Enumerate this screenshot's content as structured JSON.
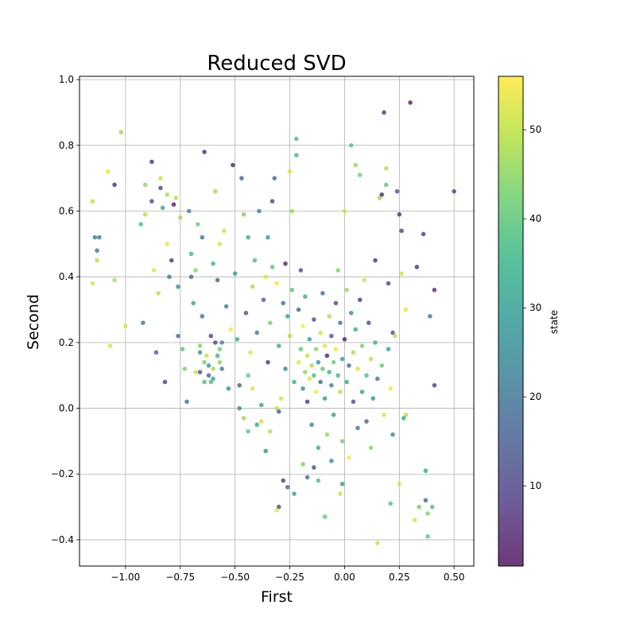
{
  "chart_data": {
    "type": "scatter",
    "title": "Reduced SVD",
    "xlabel": "First",
    "ylabel": "Second",
    "xlim": [
      -1.21,
      0.59
    ],
    "ylim": [
      -0.48,
      1.01
    ],
    "x_ticks": [
      -1.0,
      -0.75,
      -0.5,
      -0.25,
      0.0,
      0.25,
      0.5
    ],
    "x_tick_labels": [
      "−1.00",
      "−0.75",
      "−0.50",
      "−0.25",
      "0.00",
      "0.25",
      "0.50"
    ],
    "y_ticks": [
      -0.4,
      -0.2,
      0.0,
      0.2,
      0.4,
      0.6,
      0.8,
      1.0
    ],
    "y_tick_labels": [
      "−0.4",
      "−0.2",
      "0.0",
      "0.2",
      "0.4",
      "0.6",
      "0.8",
      "1.0"
    ],
    "grid": true,
    "colormap": "viridis",
    "colorbar": {
      "label": "state",
      "range": [
        1,
        56
      ],
      "ticks": [
        10,
        20,
        30,
        40,
        50
      ],
      "tick_labels": [
        "10",
        "20",
        "30",
        "40",
        "50"
      ]
    },
    "point_alpha": 0.75,
    "points": [
      [
        -1.15,
        0.63,
        50
      ],
      [
        -1.15,
        0.38,
        52
      ],
      [
        -1.14,
        0.52,
        22
      ],
      [
        -1.13,
        0.48,
        20
      ],
      [
        -1.13,
        0.45,
        49
      ],
      [
        -1.12,
        0.52,
        21
      ],
      [
        -1.08,
        0.72,
        54
      ],
      [
        -1.07,
        0.19,
        52
      ],
      [
        -1.05,
        0.68,
        5
      ],
      [
        -1.05,
        0.39,
        48
      ],
      [
        -1.02,
        0.84,
        47
      ],
      [
        -1.0,
        0.25,
        53
      ],
      [
        -0.93,
        0.56,
        38
      ],
      [
        -0.92,
        0.26,
        18
      ],
      [
        -0.91,
        0.68,
        45
      ],
      [
        -0.91,
        0.59,
        49
      ],
      [
        -0.88,
        0.75,
        6
      ],
      [
        -0.88,
        0.63,
        10
      ],
      [
        -0.87,
        0.42,
        53
      ],
      [
        -0.86,
        0.17,
        15
      ],
      [
        -0.85,
        0.35,
        50
      ],
      [
        -0.84,
        0.67,
        9
      ],
      [
        -0.84,
        0.7,
        51
      ],
      [
        -0.83,
        0.61,
        30
      ],
      [
        -0.82,
        0.08,
        7
      ],
      [
        -0.81,
        0.65,
        48
      ],
      [
        -0.81,
        0.5,
        54
      ],
      [
        -0.8,
        0.4,
        22
      ],
      [
        -0.79,
        0.45,
        6
      ],
      [
        -0.78,
        0.62,
        3
      ],
      [
        -0.77,
        0.64,
        49
      ],
      [
        -0.76,
        0.37,
        26
      ],
      [
        -0.76,
        0.22,
        18
      ],
      [
        -0.75,
        0.58,
        48
      ],
      [
        -0.74,
        0.18,
        40
      ],
      [
        -0.73,
        0.12,
        44
      ],
      [
        -0.72,
        0.02,
        20
      ],
      [
        -0.71,
        0.6,
        24
      ],
      [
        -0.7,
        0.47,
        36
      ],
      [
        -0.7,
        0.4,
        17
      ],
      [
        -0.69,
        0.32,
        33
      ],
      [
        -0.68,
        0.42,
        46
      ],
      [
        -0.67,
        0.56,
        42
      ],
      [
        -0.66,
        0.19,
        45
      ],
      [
        -0.66,
        0.11,
        11
      ],
      [
        -0.65,
        0.52,
        20
      ],
      [
        -0.65,
        0.28,
        19
      ],
      [
        -0.64,
        0.78,
        5
      ],
      [
        -0.64,
        0.08,
        38
      ],
      [
        -0.63,
        0.16,
        51
      ],
      [
        -0.62,
        0.13,
        27
      ],
      [
        -0.61,
        0.22,
        9
      ],
      [
        -0.6,
        0.44,
        36
      ],
      [
        -0.6,
        0.09,
        32
      ],
      [
        -0.59,
        0.66,
        47
      ],
      [
        -0.58,
        0.39,
        15
      ],
      [
        -0.57,
        0.5,
        53
      ],
      [
        -0.57,
        0.18,
        42
      ],
      [
        -0.56,
        0.12,
        20
      ],
      [
        -0.55,
        0.54,
        51
      ],
      [
        -0.54,
        0.31,
        22
      ],
      [
        -0.53,
        0.06,
        28
      ],
      [
        -0.52,
        0.24,
        55
      ],
      [
        -0.51,
        0.74,
        4
      ],
      [
        -0.5,
        0.41,
        29
      ],
      [
        -0.49,
        0.21,
        35
      ],
      [
        -0.48,
        0.0,
        25
      ],
      [
        -0.47,
        0.7,
        16
      ],
      [
        -0.46,
        0.59,
        44
      ],
      [
        -0.45,
        0.29,
        12
      ],
      [
        -0.44,
        0.52,
        33
      ],
      [
        -0.44,
        0.1,
        41
      ],
      [
        -0.43,
        0.17,
        53
      ],
      [
        -0.42,
        0.37,
        48
      ],
      [
        -0.41,
        0.45,
        38
      ],
      [
        -0.4,
        0.23,
        22
      ],
      [
        -0.39,
        0.6,
        24
      ],
      [
        -0.38,
        0.01,
        31
      ],
      [
        -0.37,
        0.33,
        13
      ],
      [
        -0.36,
        0.4,
        53
      ],
      [
        -0.35,
        0.52,
        28
      ],
      [
        -0.35,
        0.14,
        6
      ],
      [
        -0.34,
        0.26,
        44
      ],
      [
        -0.33,
        0.63,
        9
      ],
      [
        -0.33,
        0.43,
        40
      ],
      [
        -0.32,
        0.7,
        15
      ],
      [
        -0.31,
        0.38,
        55
      ],
      [
        -0.3,
        0.19,
        33
      ],
      [
        -0.29,
        0.03,
        52
      ],
      [
        -0.28,
        0.32,
        18
      ],
      [
        -0.27,
        0.44,
        4
      ],
      [
        -0.27,
        0.12,
        24
      ],
      [
        -0.26,
        0.28,
        30
      ],
      [
        -0.25,
        0.22,
        49
      ],
      [
        -0.25,
        0.72,
        53
      ],
      [
        -0.24,
        0.36,
        40
      ],
      [
        -0.24,
        0.6,
        47
      ],
      [
        -0.23,
        0.08,
        35
      ],
      [
        -0.22,
        0.82,
        38
      ],
      [
        -0.22,
        0.77,
        37
      ],
      [
        -0.21,
        0.14,
        54
      ],
      [
        -0.21,
        0.3,
        16
      ],
      [
        -0.2,
        0.42,
        11
      ],
      [
        -0.2,
        0.18,
        41
      ],
      [
        -0.19,
        0.06,
        27
      ],
      [
        -0.19,
        0.25,
        56
      ],
      [
        -0.18,
        0.11,
        45
      ],
      [
        -0.18,
        0.34,
        33
      ],
      [
        -0.17,
        0.16,
        51
      ],
      [
        -0.17,
        0.02,
        7
      ],
      [
        -0.16,
        0.09,
        53
      ],
      [
        -0.16,
        0.21,
        30
      ],
      [
        -0.15,
        0.13,
        48
      ],
      [
        -0.15,
        -0.05,
        22
      ],
      [
        -0.14,
        0.1,
        38
      ],
      [
        -0.14,
        0.27,
        12
      ],
      [
        -0.13,
        0.05,
        55
      ],
      [
        -0.13,
        0.18,
        45
      ],
      [
        -0.12,
        0.14,
        26
      ],
      [
        -0.12,
        -0.12,
        34
      ],
      [
        -0.11,
        0.08,
        17
      ],
      [
        -0.11,
        0.23,
        52
      ],
      [
        -0.1,
        0.12,
        40
      ],
      [
        -0.1,
        0.35,
        19
      ],
      [
        -0.09,
        0.03,
        29
      ],
      [
        -0.09,
        0.19,
        53
      ],
      [
        -0.08,
        0.16,
        4
      ],
      [
        -0.08,
        -0.08,
        46
      ],
      [
        -0.07,
        0.11,
        36
      ],
      [
        -0.07,
        0.28,
        49
      ],
      [
        -0.06,
        0.07,
        24
      ],
      [
        -0.06,
        0.22,
        14
      ],
      [
        -0.05,
        0.14,
        42
      ],
      [
        -0.05,
        -0.02,
        31
      ],
      [
        -0.04,
        0.32,
        9
      ],
      [
        -0.04,
        0.18,
        55
      ],
      [
        -0.03,
        0.1,
        37
      ],
      [
        -0.03,
        0.42,
        44
      ],
      [
        -0.02,
        0.26,
        20
      ],
      [
        -0.02,
        0.05,
        50
      ],
      [
        -0.01,
        0.15,
        28
      ],
      [
        -0.01,
        -0.1,
        43
      ],
      [
        0.0,
        0.6,
        52
      ],
      [
        0.0,
        0.21,
        3
      ],
      [
        0.01,
        0.36,
        47
      ],
      [
        0.01,
        0.08,
        33
      ],
      [
        0.02,
        0.13,
        16
      ],
      [
        0.02,
        -0.15,
        55
      ],
      [
        0.03,
        0.8,
        40
      ],
      [
        0.03,
        0.29,
        25
      ],
      [
        0.04,
        0.17,
        48
      ],
      [
        0.04,
        0.02,
        11
      ],
      [
        0.05,
        0.24,
        35
      ],
      [
        0.05,
        0.74,
        47
      ],
      [
        0.06,
        0.12,
        53
      ],
      [
        0.06,
        -0.06,
        21
      ],
      [
        0.07,
        0.33,
        7
      ],
      [
        0.07,
        0.71,
        42
      ],
      [
        0.08,
        0.19,
        44
      ],
      [
        0.08,
        0.05,
        30
      ],
      [
        0.09,
        0.39,
        52
      ],
      [
        0.1,
        0.1,
        38
      ],
      [
        0.1,
        -0.04,
        18
      ],
      [
        0.11,
        0.26,
        10
      ],
      [
        0.12,
        0.15,
        49
      ],
      [
        0.12,
        -0.12,
        45
      ],
      [
        0.13,
        0.03,
        27
      ],
      [
        0.14,
        0.45,
        5
      ],
      [
        0.14,
        0.2,
        36
      ],
      [
        0.15,
        -0.41,
        51
      ],
      [
        0.15,
        0.09,
        22
      ],
      [
        0.16,
        0.64,
        47
      ],
      [
        0.17,
        0.65,
        4
      ],
      [
        0.17,
        0.13,
        42
      ],
      [
        0.18,
        0.9,
        6
      ],
      [
        0.18,
        -0.02,
        53
      ],
      [
        0.19,
        0.73,
        49
      ],
      [
        0.19,
        0.68,
        40
      ],
      [
        0.2,
        0.38,
        8
      ],
      [
        0.2,
        0.18,
        31
      ],
      [
        0.21,
        -0.29,
        39
      ],
      [
        0.21,
        0.06,
        55
      ],
      [
        0.22,
        0.23,
        12
      ],
      [
        0.22,
        -0.08,
        24
      ],
      [
        0.23,
        0.22,
        50
      ],
      [
        0.24,
        0.66,
        13
      ],
      [
        0.25,
        0.59,
        6
      ],
      [
        0.25,
        -0.23,
        53
      ],
      [
        0.26,
        0.54,
        8
      ],
      [
        0.26,
        0.41,
        52
      ],
      [
        0.27,
        -0.03,
        34
      ],
      [
        0.28,
        0.3,
        54
      ],
      [
        0.28,
        -0.02,
        49
      ],
      [
        0.3,
        0.93,
        4
      ],
      [
        0.32,
        -0.34,
        52
      ],
      [
        0.33,
        0.43,
        6
      ],
      [
        0.34,
        -0.3,
        43
      ],
      [
        0.36,
        0.53,
        7
      ],
      [
        0.37,
        -0.19,
        33
      ],
      [
        0.37,
        -0.28,
        17
      ],
      [
        0.38,
        -0.39,
        40
      ],
      [
        0.38,
        -0.32,
        45
      ],
      [
        0.39,
        0.28,
        21
      ],
      [
        0.4,
        -0.3,
        39
      ],
      [
        0.41,
        0.36,
        5
      ],
      [
        0.41,
        0.07,
        8
      ],
      [
        0.5,
        0.66,
        9
      ],
      [
        -0.3,
        -0.3,
        11
      ],
      [
        -0.31,
        -0.31,
        54
      ],
      [
        -0.28,
        -0.22,
        8
      ],
      [
        -0.26,
        -0.24,
        16
      ],
      [
        -0.23,
        -0.26,
        30
      ],
      [
        -0.19,
        -0.17,
        44
      ],
      [
        -0.17,
        -0.21,
        19
      ],
      [
        -0.14,
        -0.18,
        12
      ],
      [
        -0.12,
        -0.22,
        38
      ],
      [
        -0.09,
        -0.33,
        41
      ],
      [
        -0.06,
        -0.16,
        26
      ],
      [
        -0.02,
        -0.26,
        51
      ],
      [
        -0.01,
        -0.23,
        29
      ],
      [
        -0.48,
        0.07,
        15
      ],
      [
        -0.46,
        -0.03,
        47
      ],
      [
        -0.44,
        -0.07,
        40
      ],
      [
        -0.42,
        0.06,
        52
      ],
      [
        -0.4,
        -0.05,
        33
      ],
      [
        -0.38,
        -0.04,
        52
      ],
      [
        -0.36,
        -0.13,
        27
      ],
      [
        -0.34,
        -0.07,
        49
      ],
      [
        -0.31,
        0.0,
        50
      ],
      [
        -0.3,
        -0.01,
        14
      ],
      [
        -0.56,
        0.2,
        24
      ],
      [
        -0.58,
        0.16,
        35
      ],
      [
        -0.6,
        0.12,
        48
      ],
      [
        -0.62,
        0.1,
        16
      ],
      [
        -0.64,
        0.14,
        43
      ],
      [
        -0.66,
        0.17,
        28
      ],
      [
        -0.68,
        0.11,
        51
      ],
      [
        -0.61,
        0.08,
        38
      ],
      [
        -0.59,
        0.2,
        10
      ],
      [
        -0.57,
        0.14,
        45
      ]
    ]
  }
}
